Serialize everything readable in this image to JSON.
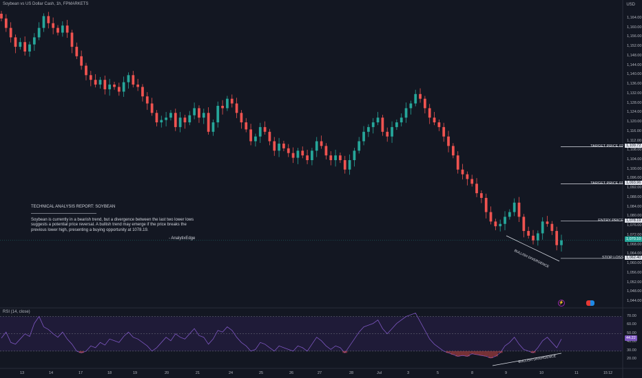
{
  "header": {
    "title": "Soybean vs US Dollar Cash, 1h, FPMARKETS",
    "currency": "USD"
  },
  "price_axis": {
    "ticks": [
      "1,164.00",
      "1,160.00",
      "1,156.00",
      "1,152.00",
      "1,148.00",
      "1,144.00",
      "1,140.00",
      "1,136.00",
      "1,132.00",
      "1,128.00",
      "1,124.00",
      "1,120.00",
      "1,116.00",
      "1,112.00",
      "1,108.00",
      "1,104.00",
      "1,100.00",
      "1,096.00",
      "1,092.00",
      "1,088.00",
      "1,084.00",
      "1,080.00",
      "1,076.00",
      "1,072.00",
      "1,068.00",
      "1,064.00",
      "1,060.00",
      "1,056.00",
      "1,052.00",
      "1,048.00",
      "1,044.00"
    ],
    "current_price": "1,070.10"
  },
  "time_axis": {
    "labels": [
      "13",
      "14",
      "17",
      "18",
      "19",
      "20",
      "21",
      "24",
      "25",
      "26",
      "27",
      "28",
      "Jul",
      "3",
      "5",
      "8",
      "9",
      "10",
      "11",
      "12",
      "15"
    ]
  },
  "levels": [
    {
      "label": "TARGET PRICE 02",
      "value": "1,109.72"
    },
    {
      "label": "TARGET PRICE 01",
      "value": "1,093.96"
    },
    {
      "label": "ENTRY PRICE",
      "value": "1,078.19"
    },
    {
      "label": "STOP LOSS",
      "value": "1,062.40"
    }
  ],
  "annotations": {
    "bullish_divergence_price": "BULLISH DIVERGENCE",
    "bullish_divergence_rsi": "BULLISH DIVERGENCE"
  },
  "report": {
    "heading": "TECHNICAL ANALYSIS REPORT: SOYBEAN",
    "body": "Soybean is currently in a bearish trend, but a divergence between the last two lower lows suggests a potential price reversal. A bullish trend may emerge if the price breaks the previous lower high, presenting a buying opportunity at 1078.19.",
    "signature": "- AnalytixEdge"
  },
  "rsi": {
    "label": "RSI (14, close)",
    "ticks": [
      "70.00",
      "60.00",
      "50.00",
      "40.00",
      "30.00",
      "20.00"
    ],
    "current": "44.22"
  },
  "icons": [
    "lightning-icon",
    "flag-icon"
  ],
  "colors": {
    "background": "#131722",
    "up": "#26a69a",
    "down": "#ef5350",
    "rsi_line": "#7e57c2",
    "rsi_band": "#2a1f4a",
    "level_line": "#e0e3eb",
    "current_tag": "#26a69a"
  },
  "chart_data": {
    "type": "candlestick",
    "title": "Soybean vs US Dollar Cash, 1h, FPMARKETS",
    "ylim": [
      1040,
      1168
    ],
    "close_path": [
      1164,
      1160,
      1156,
      1152,
      1154,
      1150,
      1153,
      1156,
      1160,
      1165,
      1162,
      1160,
      1158,
      1161,
      1158,
      1152,
      1148,
      1144,
      1140,
      1138,
      1136,
      1138,
      1134,
      1136,
      1135,
      1133,
      1137,
      1140,
      1136,
      1135,
      1131,
      1128,
      1124,
      1120,
      1121,
      1122,
      1124,
      1118,
      1122,
      1120,
      1123,
      1126,
      1122,
      1124,
      1116,
      1120,
      1127,
      1126,
      1130,
      1128,
      1124,
      1120,
      1117,
      1112,
      1114,
      1118,
      1116,
      1112,
      1108,
      1111,
      1109,
      1107,
      1105,
      1108,
      1106,
      1104,
      1108,
      1112,
      1110,
      1106,
      1104,
      1106,
      1104,
      1100,
      1104,
      1108,
      1112,
      1116,
      1118,
      1120,
      1122,
      1116,
      1114,
      1118,
      1120,
      1122,
      1126,
      1128,
      1132,
      1130,
      1126,
      1122,
      1120,
      1118,
      1114,
      1110,
      1106,
      1100,
      1098,
      1096,
      1094,
      1090,
      1088,
      1082,
      1078,
      1076,
      1077,
      1080,
      1082,
      1086,
      1080,
      1074,
      1072,
      1070,
      1073,
      1078,
      1077,
      1074,
      1068,
      1070
    ],
    "rsi_path": [
      45,
      52,
      40,
      38,
      44,
      50,
      47,
      62,
      70,
      58,
      55,
      50,
      46,
      52,
      44,
      38,
      30,
      28,
      30,
      36,
      34,
      40,
      37,
      44,
      42,
      40,
      47,
      52,
      46,
      44,
      40,
      36,
      30,
      34,
      40,
      46,
      42,
      50,
      46,
      44,
      50,
      56,
      48,
      46,
      38,
      44,
      54,
      52,
      58,
      54,
      46,
      40,
      36,
      30,
      32,
      40,
      38,
      34,
      30,
      36,
      34,
      32,
      30,
      36,
      34,
      30,
      38,
      46,
      42,
      36,
      32,
      36,
      34,
      28,
      36,
      44,
      52,
      58,
      60,
      62,
      66,
      56,
      50,
      56,
      62,
      66,
      70,
      72,
      74,
      64,
      54,
      44,
      38,
      34,
      30,
      28,
      26,
      24,
      25,
      24,
      27,
      26,
      25,
      24,
      22,
      24,
      28,
      36,
      40,
      46,
      38,
      32,
      30,
      28,
      34,
      42,
      46,
      40,
      34,
      44
    ],
    "rsi_levels": {
      "overbought": 70,
      "middle": 50,
      "oversold": 30
    },
    "horizontal_levels": [
      1109.72,
      1093.96,
      1078.19,
      1062.4
    ],
    "last_price": 1070.1
  }
}
